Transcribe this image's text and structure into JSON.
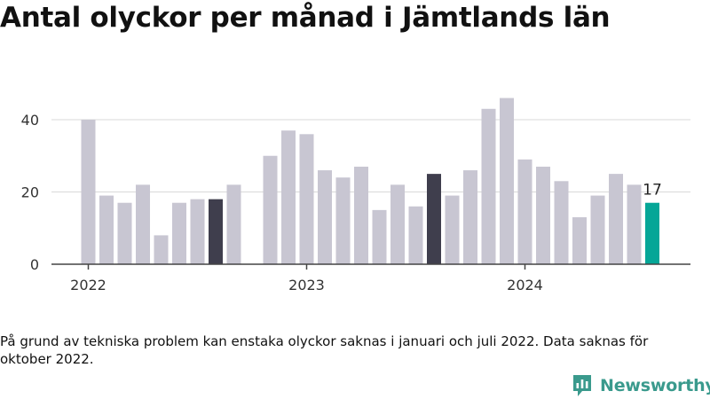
{
  "title": "Antal olyckor per månad i Jämtlands län",
  "footnote": "På grund av tekniska problem kan enstaka olyckor saknas i januari och juli 2022. Data saknas för oktober 2022.",
  "brand": {
    "name": "Newsworthy",
    "icon": "newsworthy-logo-icon",
    "color": "#3a9a8d"
  },
  "colors": {
    "bar": "#c8c6d2",
    "bar_highlight": "#3f3e4d",
    "bar_latest": "#05a697",
    "axis": "#444444"
  },
  "chart_data": {
    "type": "bar",
    "title": "Antal olyckor per månad i Jämtlands län",
    "xlabel": "",
    "ylabel": "",
    "ylim": [
      0,
      50
    ],
    "yticks": [
      0,
      20,
      40
    ],
    "grid": true,
    "x_ticks": [
      {
        "label": "2022",
        "month": "2022-01"
      },
      {
        "label": "2023",
        "month": "2023-01"
      },
      {
        "label": "2024",
        "month": "2024-01"
      }
    ],
    "categories": [
      "2022-01",
      "2022-02",
      "2022-03",
      "2022-04",
      "2022-05",
      "2022-06",
      "2022-07",
      "2022-08",
      "2022-09",
      "2022-10",
      "2022-11",
      "2022-12",
      "2023-01",
      "2023-02",
      "2023-03",
      "2023-04",
      "2023-05",
      "2023-06",
      "2023-07",
      "2023-08",
      "2023-09",
      "2023-10",
      "2023-11",
      "2023-12",
      "2024-01",
      "2024-02",
      "2024-03",
      "2024-04",
      "2024-05",
      "2024-06",
      "2024-07",
      "2024-08"
    ],
    "values": [
      40,
      19,
      17,
      22,
      8,
      17,
      18,
      18,
      22,
      null,
      30,
      37,
      36,
      26,
      24,
      27,
      15,
      22,
      16,
      25,
      19,
      26,
      43,
      46,
      29,
      27,
      23,
      13,
      19,
      25,
      22,
      17
    ],
    "highlight": [
      "2022-08",
      "2023-08"
    ],
    "latest": "2024-08",
    "annotations": [
      {
        "month": "2024-08",
        "text": "17"
      }
    ]
  }
}
